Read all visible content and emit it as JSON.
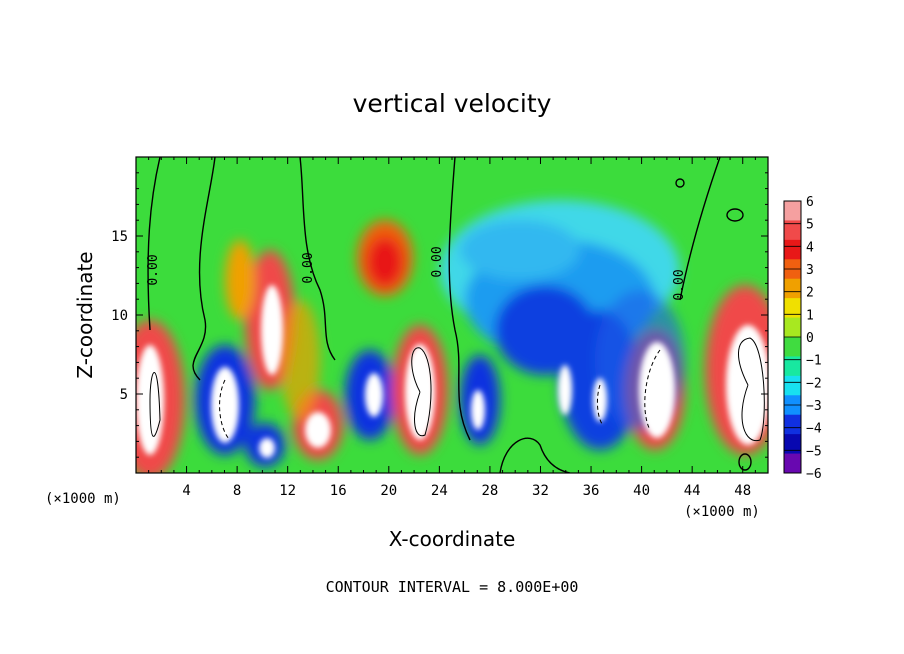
{
  "chart_data": {
    "type": "heatmap",
    "title": "vertical velocity",
    "xlabel": "X-coordinate",
    "ylabel": "Z-coordinate",
    "x_unit": "(×1000 m)",
    "y_unit": "(×1000 m)",
    "xlim": [
      0,
      50
    ],
    "ylim": [
      0,
      20
    ],
    "x_ticks": [
      "4",
      "8",
      "12",
      "16",
      "20",
      "24",
      "28",
      "32",
      "36",
      "40",
      "44",
      "48"
    ],
    "y_ticks": [
      "5",
      "10",
      "15"
    ],
    "x_tick_values": [
      4,
      8,
      12,
      16,
      20,
      24,
      28,
      32,
      36,
      40,
      44,
      48
    ],
    "y_tick_values": [
      5,
      10,
      15
    ],
    "colorbar": {
      "labels": [
        "6",
        "5",
        "4",
        "3",
        "2",
        "1",
        "0",
        "−1",
        "−2",
        "−3",
        "−4",
        "−5",
        "−6"
      ],
      "colors": [
        "#f5a0a0",
        "#f04a4a",
        "#e81818",
        "#f06010",
        "#f0a000",
        "#f0e000",
        "#a8e820",
        "#40dc40",
        "#18e8a0",
        "#18e0f0",
        "#1090ff",
        "#1030e0",
        "#0808b0",
        "#6808b0"
      ]
    },
    "contour_labels": [
      "0.00",
      "0.00",
      "0.00",
      "0.00"
    ],
    "footer": "CONTOUR INTERVAL = 8.000E+00"
  }
}
